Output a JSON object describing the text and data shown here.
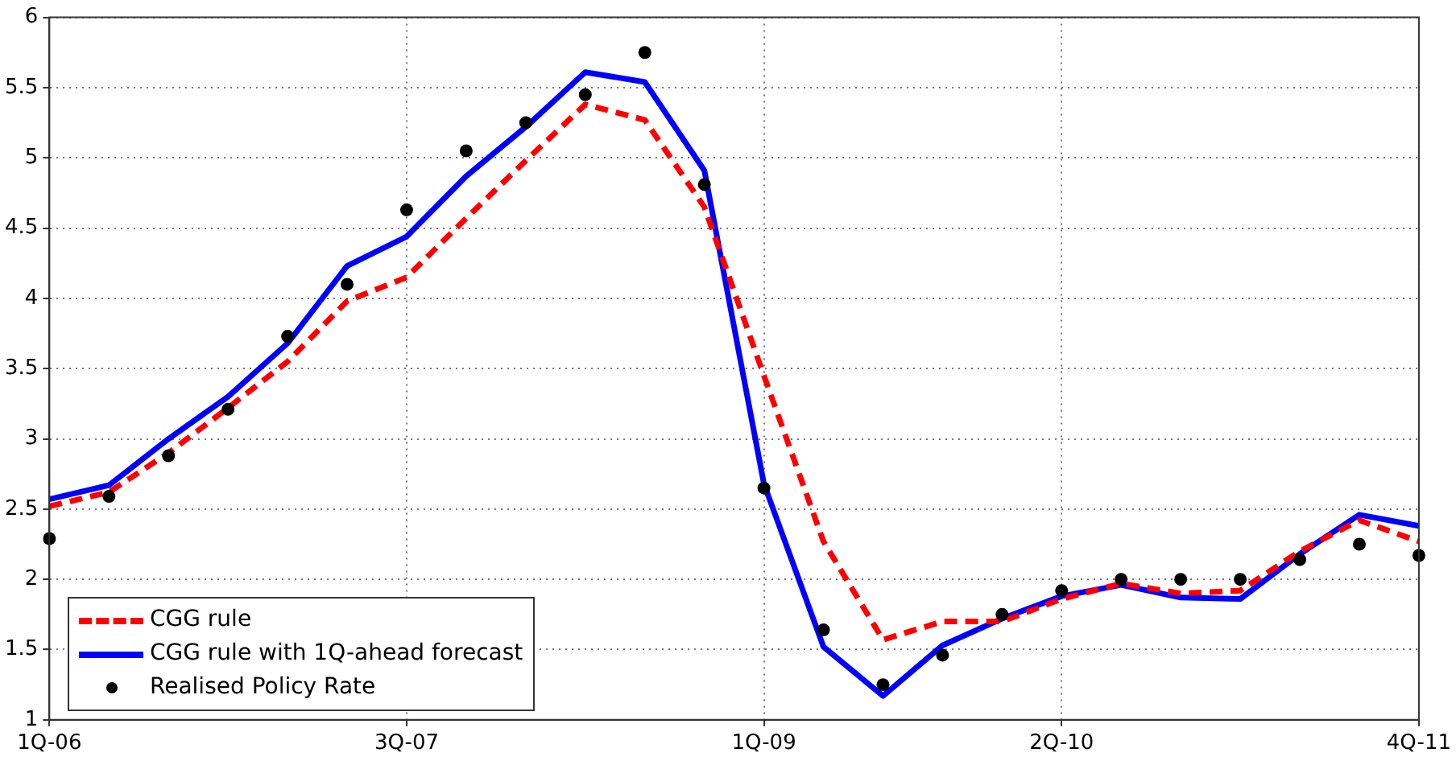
{
  "chart_data": {
    "type": "line",
    "categories": [
      "1Q-06",
      null,
      null,
      null,
      null,
      null,
      "3Q-07",
      null,
      null,
      null,
      null,
      null,
      "1Q-09",
      null,
      null,
      null,
      null,
      "2Q-10",
      null,
      null,
      null,
      null,
      null,
      "4Q-11"
    ],
    "series": [
      {
        "name": "CGG rule",
        "color": "#ff0000",
        "line_style": "dashed",
        "marker": "none",
        "values": [
          2.52,
          2.62,
          2.9,
          3.22,
          3.55,
          3.98,
          4.15,
          4.57,
          4.98,
          5.38,
          5.27,
          4.65,
          3.45,
          2.27,
          1.57,
          1.7,
          1.7,
          1.86,
          1.97,
          1.9,
          1.92,
          2.2,
          2.42,
          2.27
        ]
      },
      {
        "name": "CGG rule with 1Q-ahead forecast",
        "color": "#0000ff",
        "line_style": "solid",
        "marker": "none",
        "values": [
          2.57,
          2.67,
          3.0,
          3.3,
          3.68,
          4.23,
          4.44,
          4.87,
          5.22,
          5.61,
          5.54,
          4.91,
          2.68,
          1.52,
          1.17,
          1.53,
          1.72,
          1.88,
          1.96,
          1.87,
          1.86,
          2.18,
          2.46,
          2.38
        ]
      },
      {
        "name": "Realised Policy Rate",
        "type": "scatter",
        "color": "#000000",
        "marker": "circle",
        "values": [
          2.29,
          2.59,
          2.88,
          3.21,
          3.73,
          4.1,
          4.63,
          5.05,
          5.25,
          5.45,
          5.75,
          4.81,
          2.65,
          1.64,
          1.25,
          1.46,
          1.75,
          1.92,
          2.0,
          2.0,
          2.0,
          2.14,
          2.25,
          2.17
        ]
      }
    ],
    "ylim": [
      1,
      6
    ],
    "yticks": [
      1,
      1.5,
      2,
      2.5,
      3,
      3.5,
      4,
      4.5,
      5,
      5.5,
      6
    ],
    "grid": true,
    "legend": "bottom left"
  }
}
